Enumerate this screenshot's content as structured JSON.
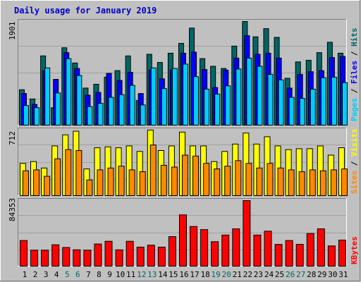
{
  "title": "Daily usage for January 2019",
  "colors": {
    "background": "#c0c0c0",
    "title": "#0000cc",
    "hits": "#006666",
    "files": "#0000ff",
    "pages": "#00ccff",
    "visits": "#ffff00",
    "sites": "#ff8800",
    "kbytes": "#ff0000",
    "weekend_label": "#006666",
    "weekday_label": "#000000"
  },
  "panels": {
    "top": {
      "max_label": "1901",
      "legend": [
        "Hits",
        "Files",
        "Pages"
      ]
    },
    "middle": {
      "max_label": "712",
      "legend": [
        "Visits",
        "Sites"
      ]
    },
    "bottom": {
      "max_label": "84353",
      "legend": [
        "KBytes"
      ]
    }
  },
  "chart_data": [
    {
      "type": "bar",
      "title": "Daily usage for January 2019",
      "categories": [
        "1",
        "2",
        "3",
        "4",
        "5",
        "6",
        "7",
        "8",
        "9",
        "10",
        "11",
        "12",
        "13",
        "14",
        "15",
        "16",
        "17",
        "18",
        "19",
        "20",
        "21",
        "22",
        "23",
        "24",
        "25",
        "26",
        "27",
        "28",
        "29",
        "30",
        "31"
      ],
      "weekend_days": [
        5,
        6,
        12,
        13,
        19,
        20,
        26,
        27
      ],
      "ylim": [
        0,
        1901
      ],
      "series": [
        {
          "name": "Hits",
          "values": [
            650,
            480,
            1270,
            320,
            1420,
            1140,
            680,
            750,
            880,
            1000,
            1270,
            450,
            1300,
            1150,
            1320,
            1500,
            1780,
            1220,
            1080,
            1040,
            1450,
            1901,
            1620,
            1770,
            1610,
            860,
            1160,
            1190,
            1330,
            1520,
            1320
          ]
        },
        {
          "name": "Files",
          "values": [
            580,
            380,
            1000,
            840,
            1330,
            1040,
            550,
            600,
            950,
            820,
            970,
            580,
            1010,
            850,
            1010,
            1320,
            1340,
            1020,
            690,
            1010,
            1230,
            1640,
            1300,
            1320,
            1230,
            680,
            930,
            980,
            1000,
            1240,
            1260
          ]
        },
        {
          "name": "Pages",
          "values": [
            360,
            320,
            1050,
            590,
            1220,
            910,
            340,
            400,
            510,
            560,
            730,
            370,
            1050,
            670,
            1040,
            1120,
            890,
            660,
            570,
            720,
            1030,
            1230,
            1080,
            930,
            830,
            510,
            490,
            660,
            870,
            880,
            780
          ]
        }
      ]
    },
    {
      "type": "bar",
      "ylim": [
        0,
        712
      ],
      "series": [
        {
          "name": "Visits",
          "values": [
            350,
            370,
            300,
            540,
            660,
            700,
            290,
            520,
            530,
            520,
            540,
            480,
            712,
            490,
            540,
            690,
            540,
            540,
            370,
            480,
            560,
            680,
            560,
            640,
            540,
            500,
            510,
            510,
            540,
            440,
            520
          ]
        },
        {
          "name": "Sites",
          "values": [
            270,
            280,
            210,
            400,
            500,
            490,
            170,
            280,
            300,
            320,
            280,
            260,
            550,
            330,
            310,
            440,
            430,
            350,
            290,
            320,
            380,
            350,
            300,
            350,
            300,
            280,
            260,
            280,
            270,
            280,
            290
          ]
        }
      ]
    },
    {
      "type": "bar",
      "ylim": [
        0,
        84353
      ],
      "series": [
        {
          "name": "KBytes",
          "values": [
            33000,
            20500,
            20500,
            27500,
            24000,
            21000,
            20500,
            28500,
            32000,
            21000,
            32000,
            24500,
            27000,
            24500,
            38000,
            66000,
            51000,
            47000,
            31500,
            40000,
            48000,
            84353,
            40000,
            45000,
            28000,
            33000,
            28000,
            42000,
            48000,
            26000,
            33500
          ]
        }
      ]
    }
  ]
}
